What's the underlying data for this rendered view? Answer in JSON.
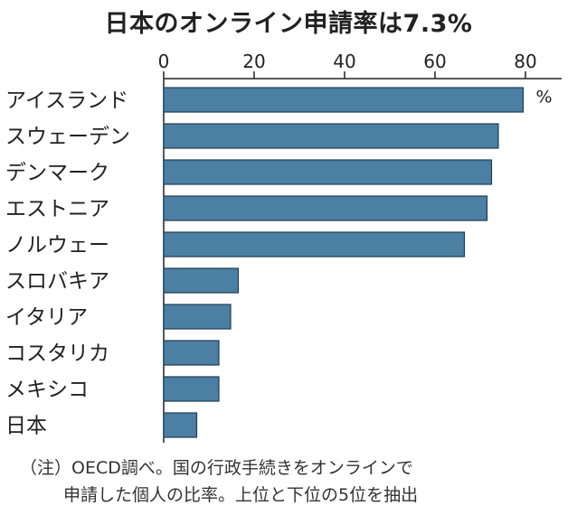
{
  "title": "日本のオンライン申請率は7.3%",
  "chart_data": {
    "type": "bar",
    "orientation": "horizontal",
    "title": "日本のオンライン申請率は7.3%",
    "categories": [
      "アイスランド",
      "スウェーデン",
      "デンマーク",
      "エストニア",
      "ノルウェー",
      "スロバキア",
      "イタリア",
      "コスタリカ",
      "メキシコ",
      "日本"
    ],
    "values": [
      79.5,
      74,
      72.5,
      71.5,
      66.5,
      16.5,
      14.8,
      12.2,
      12.2,
      7.3
    ],
    "xlim": [
      0,
      88
    ],
    "ticks": [
      0,
      20,
      40,
      60,
      80
    ],
    "tick_labels": [
      "0",
      "20",
      "40",
      "60",
      "80"
    ],
    "unit_label": "%",
    "axis_position": "top",
    "bar_color": "#4b7fa3",
    "bar_edge_color": "#1f3d52"
  },
  "notes": {
    "line1": "（注）OECD調べ。国の行政手続きをオンラインで",
    "line2": "申請した個人の比率。上位と下位の5位を抽出"
  }
}
